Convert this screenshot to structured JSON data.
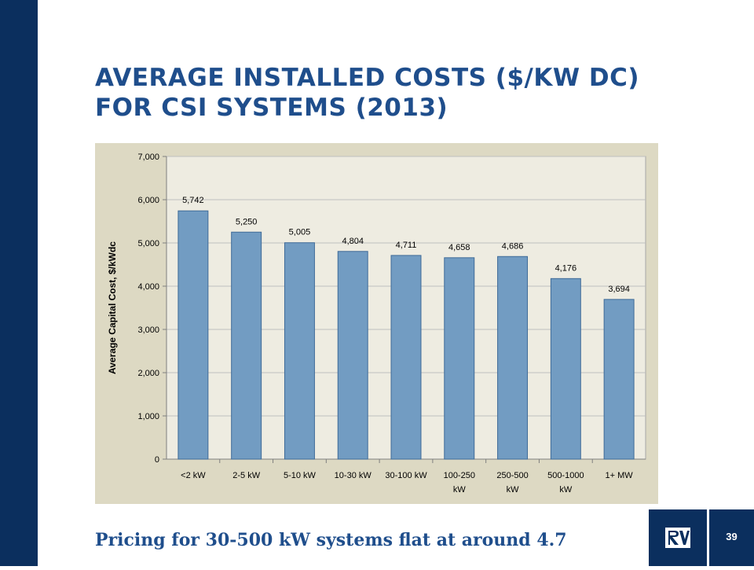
{
  "slide": {
    "title_line1": "AVERAGE INSTALLED COSTS ($/KW DC)",
    "title_line2": "FOR CSI SYSTEMS (2013)",
    "subtitle": "Pricing for 30-500 kW systems flat at around 4.7",
    "page_number": "39"
  },
  "logo": {
    "icon": "company-logo-icon"
  },
  "colors": {
    "sidebar": "#0b2f5e",
    "title": "#1f4e8c",
    "panel_bg": "#ddd9c3",
    "plot_bg": "#eeece1",
    "bar_fill": "#729cc2",
    "bar_stroke": "#3f6b98"
  },
  "chart_data": {
    "type": "bar",
    "title": "",
    "xlabel": "",
    "ylabel": "Average Capital Cost, $/kWdc",
    "ylim": [
      0,
      7000
    ],
    "yticks": [
      0,
      1000,
      2000,
      3000,
      4000,
      5000,
      6000,
      7000
    ],
    "ytick_labels": [
      "0",
      "1,000",
      "2,000",
      "3,000",
      "4,000",
      "5,000",
      "6,000",
      "7,000"
    ],
    "categories": [
      [
        "<2 kW"
      ],
      [
        "2-5 kW"
      ],
      [
        "5-10 kW"
      ],
      [
        "10-30 kW"
      ],
      [
        "30-100 kW"
      ],
      [
        "100-250",
        "kW"
      ],
      [
        "250-500",
        "kW"
      ],
      [
        "500-1000",
        "kW"
      ],
      [
        "1+ MW"
      ]
    ],
    "values": [
      5742,
      5250,
      5005,
      4804,
      4711,
      4658,
      4686,
      4176,
      3694
    ],
    "data_labels": [
      "5,742",
      "5,250",
      "5,005",
      "4,804",
      "4,711",
      "4,658",
      "4,686",
      "4,176",
      "3,694"
    ],
    "grid": true,
    "legend": "none"
  }
}
